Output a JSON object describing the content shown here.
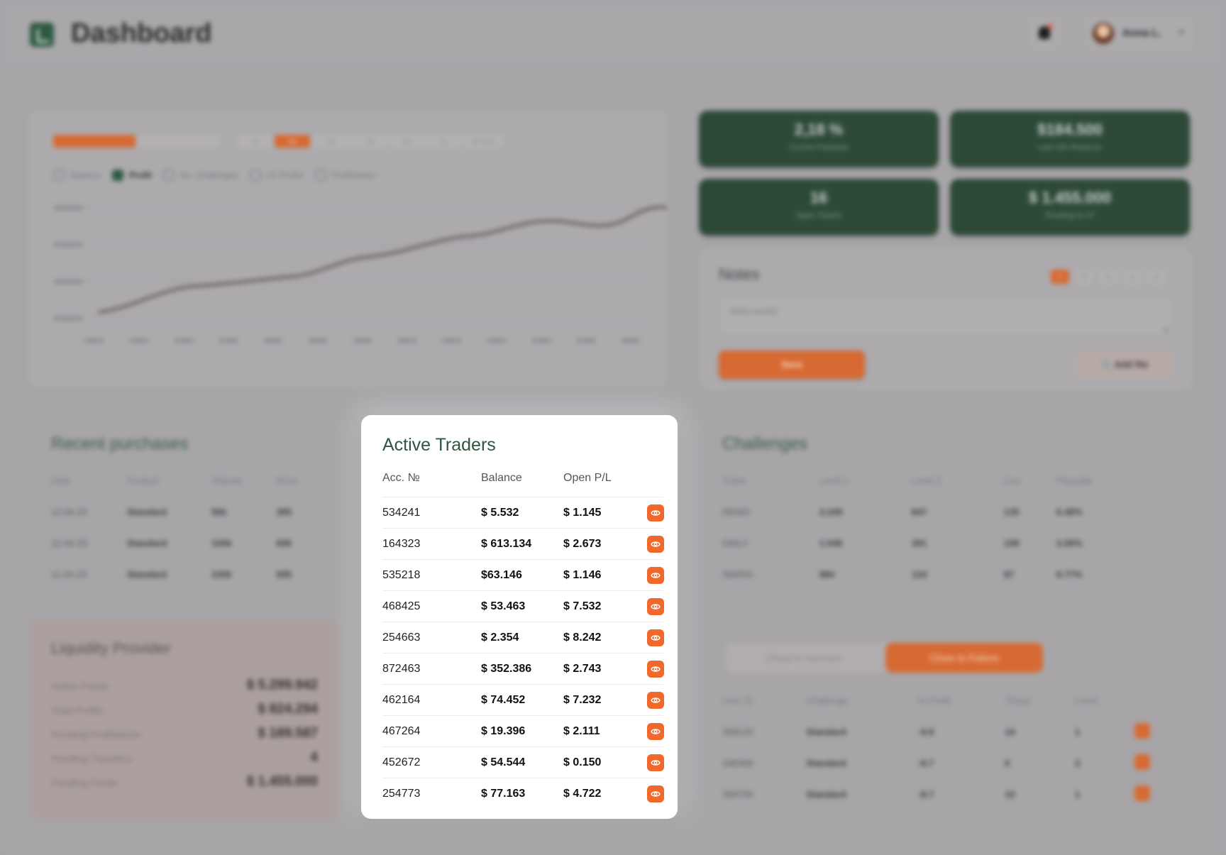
{
  "header": {
    "title": "Dashboard",
    "user_name": "Anna L."
  },
  "chart_card": {
    "ranges": [
      "1d",
      "1w",
      "1m",
      "3m",
      "6m",
      "1y",
      "All Time"
    ],
    "active_range": "1w",
    "legend": [
      {
        "label": "Balance",
        "checked": false
      },
      {
        "label": "Profit",
        "checked": true
      },
      {
        "label": "No. Challenges",
        "checked": false
      },
      {
        "label": "LP Profits",
        "checked": false
      },
      {
        "label": "Profitsharer",
        "checked": false
      }
    ]
  },
  "stats": [
    {
      "value": "2,18 %",
      "label": "Current Passrate"
    },
    {
      "value": "$184.500",
      "label": "Last 24h Revenue"
    },
    {
      "value": "16",
      "label": "Open Tickets"
    },
    {
      "value": "$ 1.455.000",
      "label": "Pending to LP"
    }
  ],
  "notes": {
    "title": "Notes",
    "pages": [
      "1",
      "2",
      "3",
      "4",
      "5"
    ],
    "active_page": "1",
    "text": "Hello world!",
    "save_label": "Save",
    "add_file_label": "Add file"
  },
  "recent_purchases": {
    "title": "Recent purchases",
    "columns": [
      "Date",
      "Product",
      "Volume",
      "Price"
    ],
    "rows": [
      [
        "12.04.23",
        "Standard",
        "50k",
        "395"
      ],
      [
        "12.04.23",
        "Standard",
        "100k",
        "695"
      ],
      [
        "11.04.23",
        "Standard",
        "100k",
        "695"
      ]
    ]
  },
  "liquidity_provider": {
    "title": "Liquidity Provider",
    "rows": [
      {
        "label": "Active Funds",
        "value": "$ 5.299.942"
      },
      {
        "label": "Total Profits",
        "value": "$ 824.294"
      },
      {
        "label": "Pending Profitssorer",
        "value": "$ 189.587"
      },
      {
        "label": "Pending Transfers",
        "value": "4"
      },
      {
        "label": "Pending Funds",
        "value": "$ 1.455.000"
      }
    ]
  },
  "challenges": {
    "title": "Challenges",
    "columns": [
      "Ticker",
      "Level 1",
      "Level 2",
      "Live",
      "Passrate"
    ],
    "rows": [
      [
        "DEMO",
        "3.249",
        "847",
        "135",
        "6.48%"
      ],
      [
        "DAILY",
        "1.048",
        "391",
        "158",
        "3.58%"
      ],
      [
        "SWING",
        "984",
        "124",
        "87",
        "8.77%"
      ]
    ]
  },
  "close_orders": {
    "tabs": [
      "Close to success",
      "Close to Failure"
    ],
    "active_tab": "Close to Failure",
    "columns": [
      "User ID",
      "Challenge",
      "% Profit",
      "7Days",
      "Level"
    ],
    "rows": [
      [
        "358120",
        "Standard",
        "-9.8",
        "14",
        "1"
      ],
      [
        "338368",
        "Standard",
        "-8.7",
        "6",
        "2"
      ],
      [
        "358759",
        "Standard",
        "-8.7",
        "10",
        "1"
      ]
    ]
  },
  "active_traders": {
    "title": "Active Traders",
    "columns": [
      "Acc. №",
      "Balance",
      "Open P/L"
    ],
    "rows": [
      {
        "acc": "534241",
        "balance": "$ 5.532",
        "pl": "$ 1.145"
      },
      {
        "acc": "164323",
        "balance": "$ 613.134",
        "pl": "$ 2.673"
      },
      {
        "acc": "535218",
        "balance": "$63.146",
        "pl": "$ 1.146"
      },
      {
        "acc": "468425",
        "balance": "$ 53.463",
        "pl": "$ 7.532"
      },
      {
        "acc": "254663",
        "balance": "$ 2.354",
        "pl": "$ 8.242"
      },
      {
        "acc": "872463",
        "balance": "$ 352.386",
        "pl": "$ 2.743"
      },
      {
        "acc": "462164",
        "balance": "$ 74.452",
        "pl": "$ 7.232"
      },
      {
        "acc": "467264",
        "balance": "$ 19.396",
        "pl": "$ 2.111"
      },
      {
        "acc": "452672",
        "balance": "$ 54.544",
        "pl": "$ 0.150"
      },
      {
        "acc": "254773",
        "balance": "$ 77.163",
        "pl": "$ 4.722"
      }
    ]
  },
  "colors": {
    "accent": "#f0682c",
    "brand_green": "#2e5641",
    "dim_overlay": "#a7a5a8"
  },
  "icons": [
    "logo-icon",
    "bell-icon",
    "chevron-down-icon",
    "eye-icon",
    "paperclip-icon"
  ]
}
